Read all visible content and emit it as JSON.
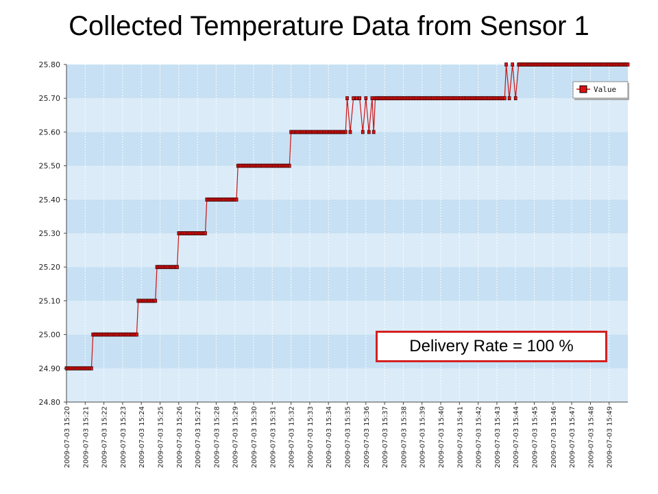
{
  "colors": {
    "series": "#cc1111",
    "band_light": "#dbebf8",
    "band_dark": "#c7e0f3",
    "annotation_border": "#d42020"
  },
  "chart_data": {
    "type": "line",
    "title": "Collected Temperature Data from Sensor 1",
    "xlabel": "",
    "ylabel": "",
    "ylim": [
      24.8,
      25.8
    ],
    "y_ticks": [
      "24.80",
      "24.90",
      "25.00",
      "25.10",
      "25.20",
      "25.30",
      "25.40",
      "25.50",
      "25.60",
      "25.70",
      "25.80"
    ],
    "x_ticks": [
      "2009-07-03 15:20",
      "2009-07-03 15:21",
      "2009-07-03 15:22",
      "2009-07-03 15:23",
      "2009-07-03 15:24",
      "2009-07-03 15:25",
      "2009-07-03 15:26",
      "2009-07-03 15:27",
      "2009-07-03 15:28",
      "2009-07-03 15:29",
      "2009-07-03 15:30",
      "2009-07-03 15:31",
      "2009-07-03 15:32",
      "2009-07-03 15:33",
      "2009-07-03 15:34",
      "2009-07-03 15:35",
      "2009-07-03 15:36",
      "2009-07-03 15:37",
      "2009-07-03 15:38",
      "2009-07-03 15:39",
      "2009-07-03 15:40",
      "2009-07-03 15:41",
      "2009-07-03 15:42",
      "2009-07-03 15:43",
      "2009-07-03 15:44",
      "2009-07-03 15:45",
      "2009-07-03 15:46",
      "2009-07-03 15:47",
      "2009-07-03 15:48",
      "2009-07-03 15:49"
    ],
    "xlim": [
      "2009-07-03 15:20",
      "2009-07-03 15:50"
    ],
    "grid": true,
    "legend_position": "top-right",
    "series": [
      {
        "name": "Value",
        "segments": [
          {
            "start": "15:20:00",
            "end": "15:21:20",
            "value": 24.9
          },
          {
            "start": "15:21:25",
            "end": "15:23:45",
            "value": 25.0
          },
          {
            "start": "15:23:50",
            "end": "15:24:45",
            "value": 25.1
          },
          {
            "start": "15:24:50",
            "end": "15:25:55",
            "value": 25.2
          },
          {
            "start": "15:26:00",
            "end": "15:27:25",
            "value": 25.3
          },
          {
            "start": "15:27:30",
            "end": "15:29:05",
            "value": 25.4
          },
          {
            "start": "15:29:10",
            "end": "15:31:55",
            "value": 25.5
          },
          {
            "start": "15:32:00",
            "end": "15:34:55",
            "value": 25.6
          },
          {
            "start": "15:36:30",
            "end": "15:43:25",
            "value": 25.7
          },
          {
            "start": "15:44:15",
            "end": "15:50:00",
            "value": 25.8
          }
        ],
        "points": [
          {
            "t": "15:35:00",
            "value": 25.7
          },
          {
            "t": "15:35:10",
            "value": 25.6
          },
          {
            "t": "15:35:20",
            "value": 25.7
          },
          {
            "t": "15:35:30",
            "value": 25.7
          },
          {
            "t": "15:35:40",
            "value": 25.7
          },
          {
            "t": "15:35:50",
            "value": 25.6
          },
          {
            "t": "15:36:00",
            "value": 25.7
          },
          {
            "t": "15:36:10",
            "value": 25.6
          },
          {
            "t": "15:36:20",
            "value": 25.7
          },
          {
            "t": "15:36:25",
            "value": 25.6
          },
          {
            "t": "15:43:30",
            "value": 25.8
          },
          {
            "t": "15:43:40",
            "value": 25.7
          },
          {
            "t": "15:43:50",
            "value": 25.8
          },
          {
            "t": "15:44:00",
            "value": 25.7
          },
          {
            "t": "15:44:10",
            "value": 25.8
          }
        ]
      }
    ],
    "annotations": [
      {
        "text": "Delivery Rate = 100 %"
      }
    ]
  }
}
